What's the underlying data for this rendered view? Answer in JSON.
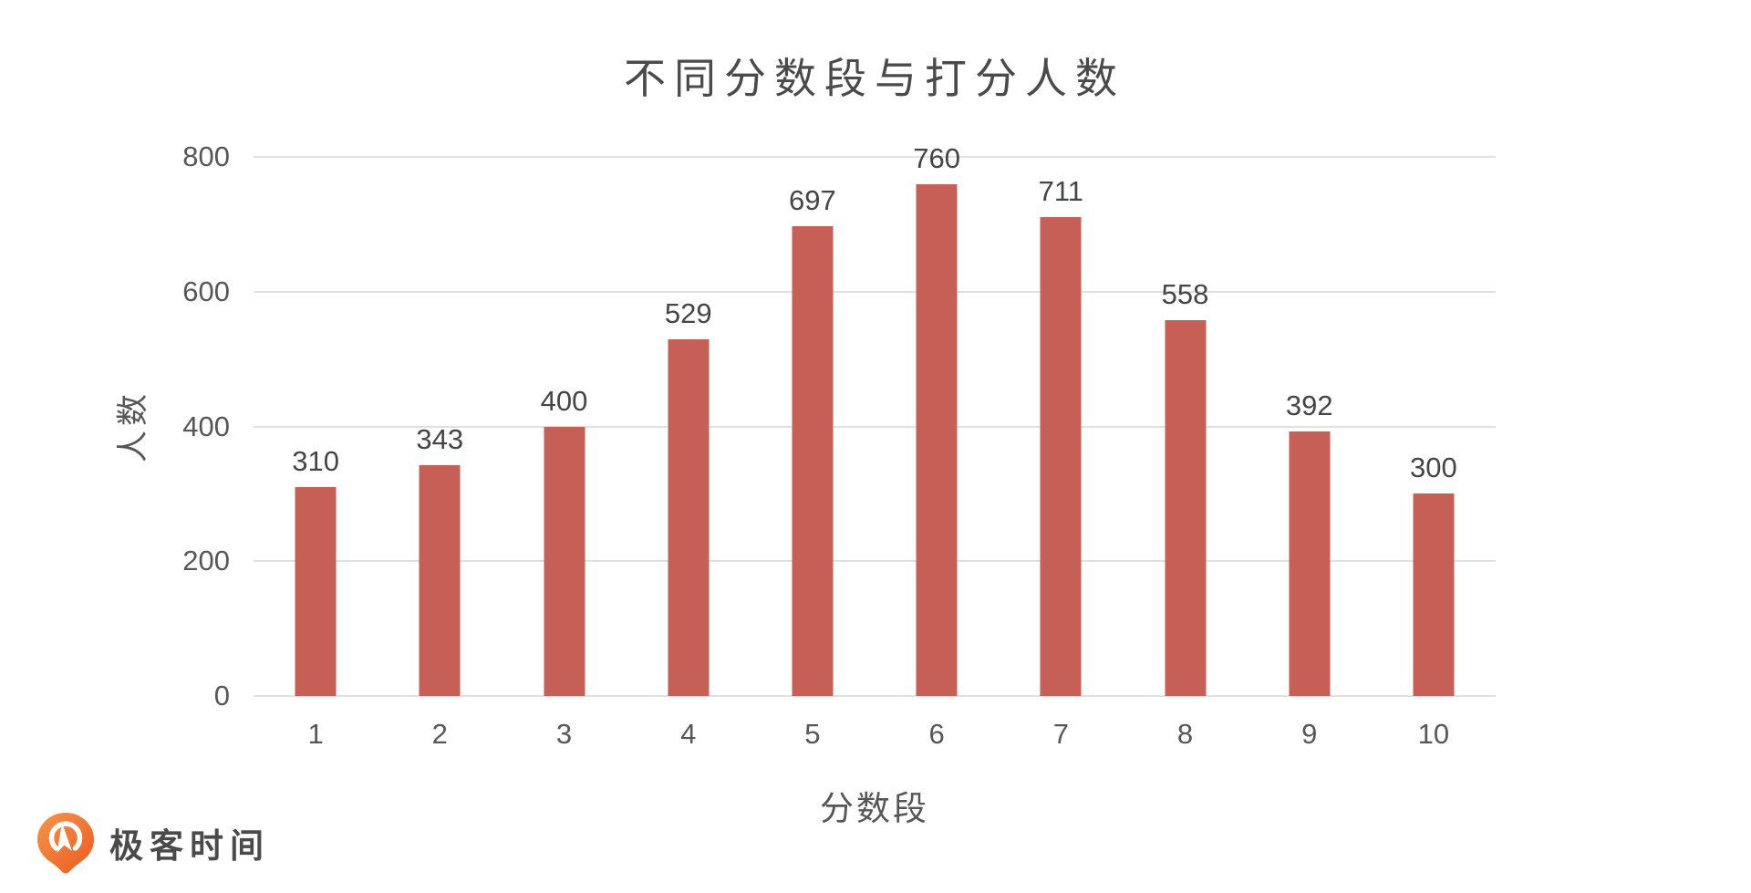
{
  "page": {
    "background": "#FFFFFF"
  },
  "brand": {
    "name": "极客时间",
    "logo_icon": "geektime-pin-icon",
    "logo_gradient_start": "#F6964B",
    "logo_gradient_end": "#EA5A1F",
    "text_color": "#4A4A4A"
  },
  "chart_data": {
    "type": "bar",
    "title": "不同分数段与打分人数",
    "xlabel": "分数段",
    "ylabel": "人数",
    "categories": [
      "1",
      "2",
      "3",
      "4",
      "5",
      "6",
      "7",
      "8",
      "9",
      "10"
    ],
    "values": [
      310,
      343,
      400,
      529,
      697,
      760,
      711,
      558,
      392,
      300
    ],
    "ylim": [
      0,
      800
    ],
    "yticks": [
      0,
      200,
      400,
      600,
      800
    ],
    "grid": true,
    "legend": "none",
    "bar_color": "#C65F56",
    "grid_color": "#E0E0E0",
    "axis_text_color": "#575757",
    "axis_title_color": "#565656",
    "title_color": "#4A4A4A",
    "value_label_color": "#454545"
  }
}
